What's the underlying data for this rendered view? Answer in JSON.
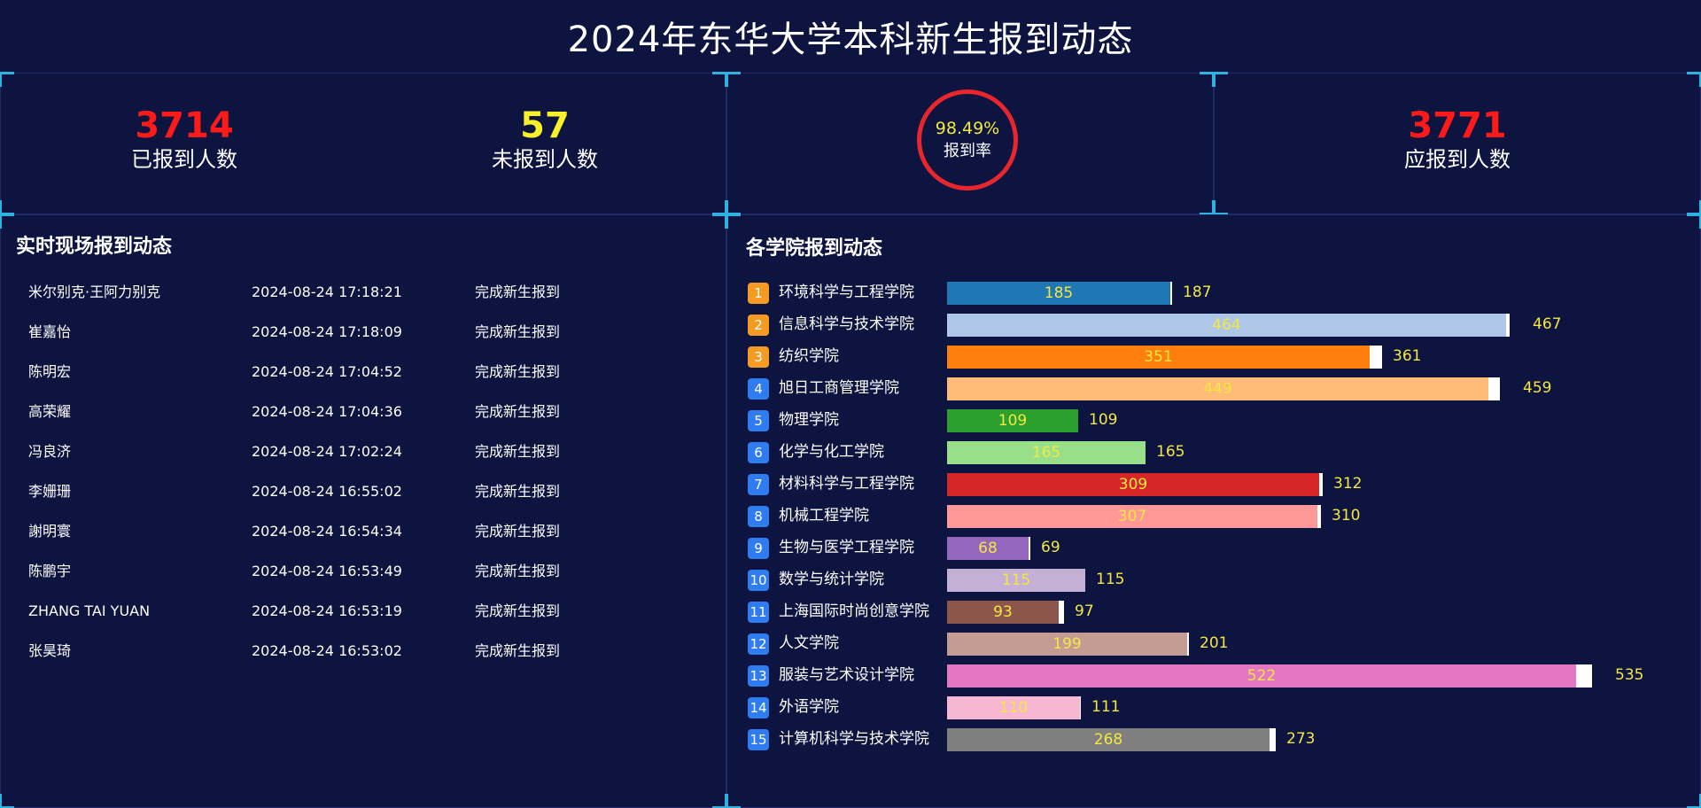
{
  "title": "2024年东华大学本科新生报到动态",
  "stats": {
    "registered": {
      "value": "3714",
      "label": "已报到人数",
      "color": "#ff1a1a"
    },
    "unregistered": {
      "value": "57",
      "label": "未报到人数",
      "color": "#f7f12a"
    },
    "rate": {
      "value": "98.49%",
      "label": "报到率",
      "ring_color": "#e8272c"
    },
    "expected": {
      "value": "3771",
      "label": "应报到人数",
      "color": "#ff1a1a"
    }
  },
  "live": {
    "title": "实时现场报到动态",
    "rows": [
      {
        "name": "米尔别克·王阿力别克",
        "time": "2024-08-24 17:18:21",
        "status": "完成新生报到"
      },
      {
        "name": "崔嘉怡",
        "time": "2024-08-24 17:18:09",
        "status": "完成新生报到"
      },
      {
        "name": "陈明宏",
        "time": "2024-08-24 17:04:52",
        "status": "完成新生报到"
      },
      {
        "name": "高荣耀",
        "time": "2024-08-24 17:04:36",
        "status": "完成新生报到"
      },
      {
        "name": "冯良济",
        "time": "2024-08-24 17:02:24",
        "status": "完成新生报到"
      },
      {
        "name": "李姗珊",
        "time": "2024-08-24 16:55:02",
        "status": "完成新生报到"
      },
      {
        "name": "謝明寰",
        "time": "2024-08-24 16:54:34",
        "status": "完成新生报到"
      },
      {
        "name": "陈鹏宇",
        "time": "2024-08-24 16:53:49",
        "status": "完成新生报到"
      },
      {
        "name": "ZHANG TAI YUAN",
        "time": "2024-08-24 16:53:19",
        "status": "完成新生报到"
      },
      {
        "name": "张昊琦",
        "time": "2024-08-24 16:53:02",
        "status": "完成新生报到"
      }
    ]
  },
  "colleges": {
    "title": "各学院报到动态",
    "items": [
      {
        "rank": "1",
        "name": "环境科学与工程学院",
        "registered": 185,
        "total": 187,
        "color": "#1f77b4",
        "rank_color": "#f59a23"
      },
      {
        "rank": "2",
        "name": "信息科学与技术学院",
        "registered": 464,
        "total": 467,
        "color": "#aec7e8",
        "rank_color": "#f59a23"
      },
      {
        "rank": "3",
        "name": "纺织学院",
        "registered": 351,
        "total": 361,
        "color": "#ff7f0e",
        "rank_color": "#f59a23"
      },
      {
        "rank": "4",
        "name": "旭日工商管理学院",
        "registered": 449,
        "total": 459,
        "color": "#ffbb78",
        "rank_color": "#2f7bf0"
      },
      {
        "rank": "5",
        "name": "物理学院",
        "registered": 109,
        "total": 109,
        "color": "#2ca02c",
        "rank_color": "#2f7bf0"
      },
      {
        "rank": "6",
        "name": "化学与化工学院",
        "registered": 165,
        "total": 165,
        "color": "#98df8a",
        "rank_color": "#2f7bf0"
      },
      {
        "rank": "7",
        "name": "材料科学与工程学院",
        "registered": 309,
        "total": 312,
        "color": "#d62728",
        "rank_color": "#2f7bf0"
      },
      {
        "rank": "8",
        "name": "机械工程学院",
        "registered": 307,
        "total": 310,
        "color": "#ff9896",
        "rank_color": "#2f7bf0"
      },
      {
        "rank": "9",
        "name": "生物与医学工程学院",
        "registered": 68,
        "total": 69,
        "color": "#9467bd",
        "rank_color": "#2f7bf0"
      },
      {
        "rank": "10",
        "name": "数学与统计学院",
        "registered": 115,
        "total": 115,
        "color": "#c5b0d5",
        "rank_color": "#2f7bf0"
      },
      {
        "rank": "11",
        "name": "上海国际时尚创意学院",
        "registered": 93,
        "total": 97,
        "color": "#8c564b",
        "rank_color": "#2f7bf0"
      },
      {
        "rank": "12",
        "name": "人文学院",
        "registered": 199,
        "total": 201,
        "color": "#c49c94",
        "rank_color": "#2f7bf0"
      },
      {
        "rank": "13",
        "name": "服装与艺术设计学院",
        "registered": 522,
        "total": 535,
        "color": "#e377c2",
        "rank_color": "#2f7bf0"
      },
      {
        "rank": "14",
        "name": "外语学院",
        "registered": 110,
        "total": 111,
        "color": "#f7b6d2",
        "rank_color": "#2f7bf0"
      },
      {
        "rank": "15",
        "name": "计算机科学与技术学院",
        "registered": 268,
        "total": 273,
        "color": "#7f7f7f",
        "rank_color": "#2f7bf0"
      }
    ]
  }
}
